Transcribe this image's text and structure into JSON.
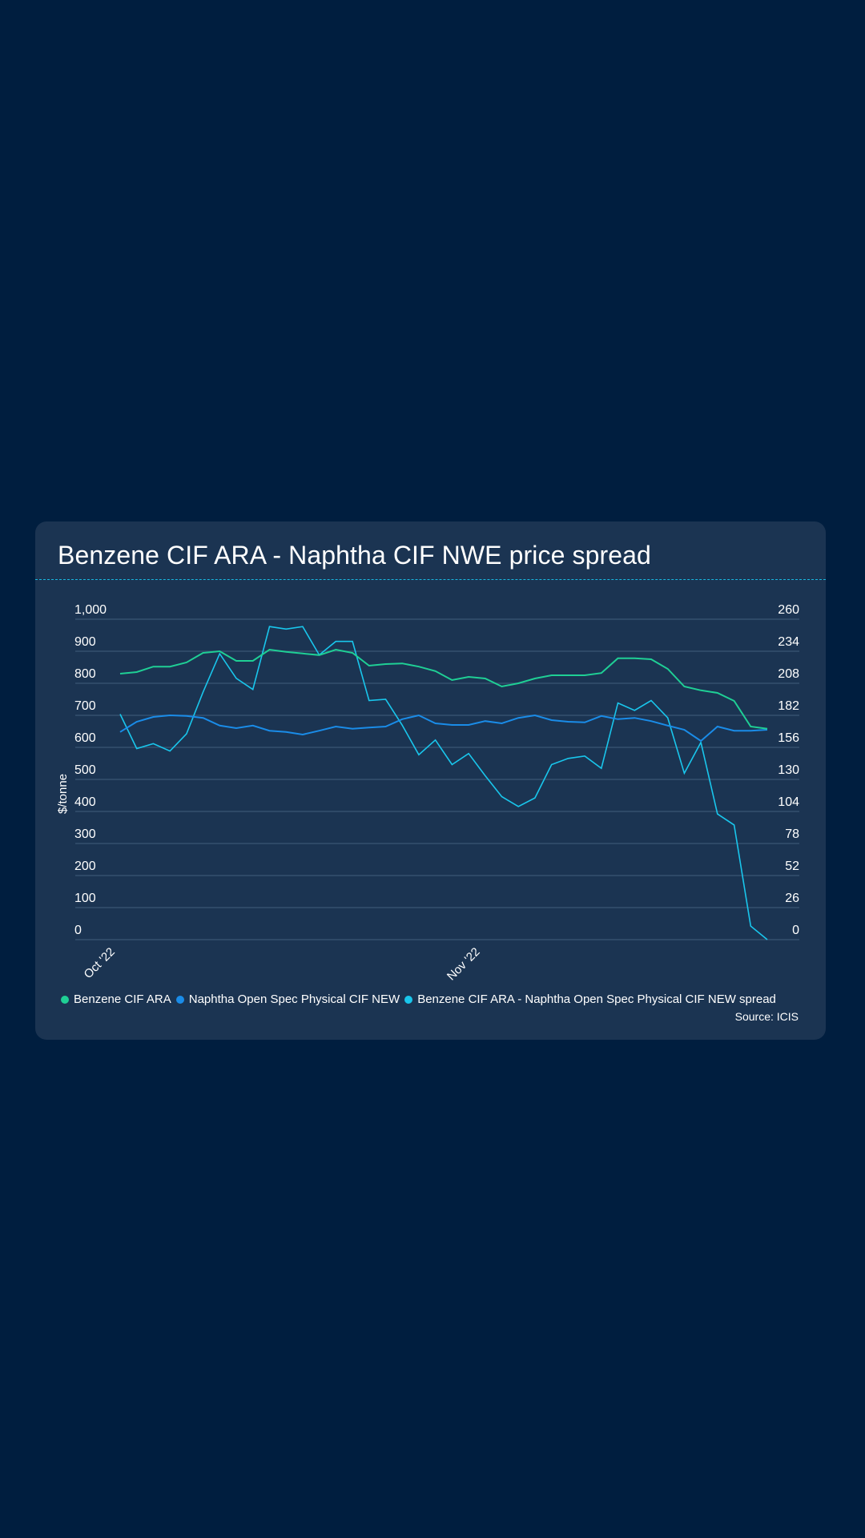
{
  "card": {
    "title": "Benzene CIF ARA - Naphtha CIF NWE price spread",
    "source": "Source: ICIS"
  },
  "colors": {
    "background": "#001e3f",
    "card": "#1b3452",
    "gridline": "#34506e",
    "benzene": "#1fcf95",
    "naphtha": "#1a8ce8",
    "spread": "#19c6ec"
  },
  "chart_data": {
    "type": "line",
    "title": "Benzene CIF ARA - Naphtha CIF NWE price spread",
    "ylabel": "$/tonne",
    "xlabel": "",
    "ylim": [
      0,
      1000
    ],
    "y2lim": [
      0,
      260
    ],
    "yticks": [
      "0",
      "100",
      "200",
      "300",
      "400",
      "500",
      "600",
      "700",
      "800",
      "900",
      "1,000"
    ],
    "y2ticks": [
      "0",
      "26",
      "52",
      "78",
      "104",
      "130",
      "156",
      "182",
      "208",
      "234",
      "260"
    ],
    "xtick_labels": [
      {
        "label": "Oct '22",
        "index": 0
      },
      {
        "label": "Nov '22",
        "index": 22
      }
    ],
    "grid": true,
    "legend_position": "bottom-left",
    "series": [
      {
        "name": "Benzene CIF ARA",
        "axis": "left",
        "color": "#1fcf95",
        "values": [
          830,
          835,
          852,
          852,
          865,
          895,
          900,
          870,
          870,
          905,
          898,
          893,
          888,
          905,
          895,
          855,
          860,
          862,
          852,
          838,
          810,
          820,
          815,
          790,
          800,
          815,
          825,
          825,
          825,
          832,
          878,
          878,
          875,
          845,
          790,
          778,
          770,
          745,
          665,
          658
        ]
      },
      {
        "name": "Naphtha Open Spec Physical CIF NEW",
        "axis": "left",
        "color": "#1a8ce8",
        "values": [
          648,
          680,
          695,
          700,
          698,
          692,
          668,
          660,
          668,
          652,
          648,
          640,
          652,
          665,
          658,
          662,
          665,
          688,
          700,
          675,
          670,
          670,
          682,
          675,
          692,
          700,
          685,
          680,
          678,
          698,
          688,
          692,
          682,
          668,
          655,
          620,
          665,
          652,
          652,
          655
        ]
      },
      {
        "name": "Benzene CIF ARA - Naphtha Open Spec Physical CIF NEW spread",
        "axis": "right",
        "color": "#19c6ec",
        "values": [
          183,
          155,
          159,
          153,
          167,
          201,
          232,
          212,
          203,
          254,
          252,
          254,
          231,
          242,
          242,
          194,
          195,
          174,
          150,
          162,
          142,
          151,
          133,
          116,
          108,
          115,
          142,
          147,
          149,
          139,
          192,
          186,
          194,
          180,
          135,
          160,
          102,
          93,
          11,
          0
        ]
      }
    ]
  }
}
